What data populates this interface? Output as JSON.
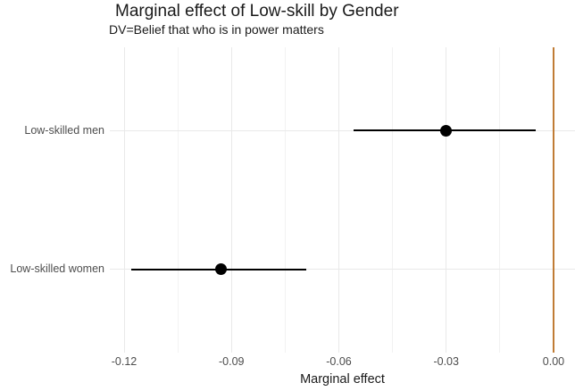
{
  "chart_data": {
    "type": "pointrange",
    "title": "Marginal effect of Low-skill by Gender",
    "subtitle": "DV=Belief that who is in power matters",
    "xlabel": "Marginal effect",
    "ylabel": "",
    "categories": [
      "Low-skilled men",
      "Low-skilled women"
    ],
    "points": [
      {
        "category": "Low-skilled men",
        "estimate": -0.03,
        "ci_low": -0.056,
        "ci_high": -0.005
      },
      {
        "category": "Low-skilled women",
        "estimate": -0.093,
        "ci_low": -0.118,
        "ci_high": -0.069
      }
    ],
    "x_ticks": [
      {
        "value": -0.12,
        "label": "-0.12"
      },
      {
        "value": -0.09,
        "label": "-0.09"
      },
      {
        "value": -0.06,
        "label": "-0.06"
      },
      {
        "value": -0.03,
        "label": "-0.03"
      },
      {
        "value": 0.0,
        "label": "0.00"
      }
    ],
    "x_minor_ticks": [
      -0.105,
      -0.075,
      -0.045,
      -0.015
    ],
    "xlim": [
      -0.124,
      0.006
    ],
    "reference_line_x": 0,
    "grid": "on",
    "legend": "none",
    "colors": {
      "point": "#000000",
      "interval": "#000000",
      "reference_line": "#c07c35",
      "grid_major": "#e9e9e9",
      "grid_minor": "#f2f2f2",
      "axis_text": "#4d4d4d",
      "title_text": "#1a1a1a",
      "background": "#ffffff"
    }
  }
}
